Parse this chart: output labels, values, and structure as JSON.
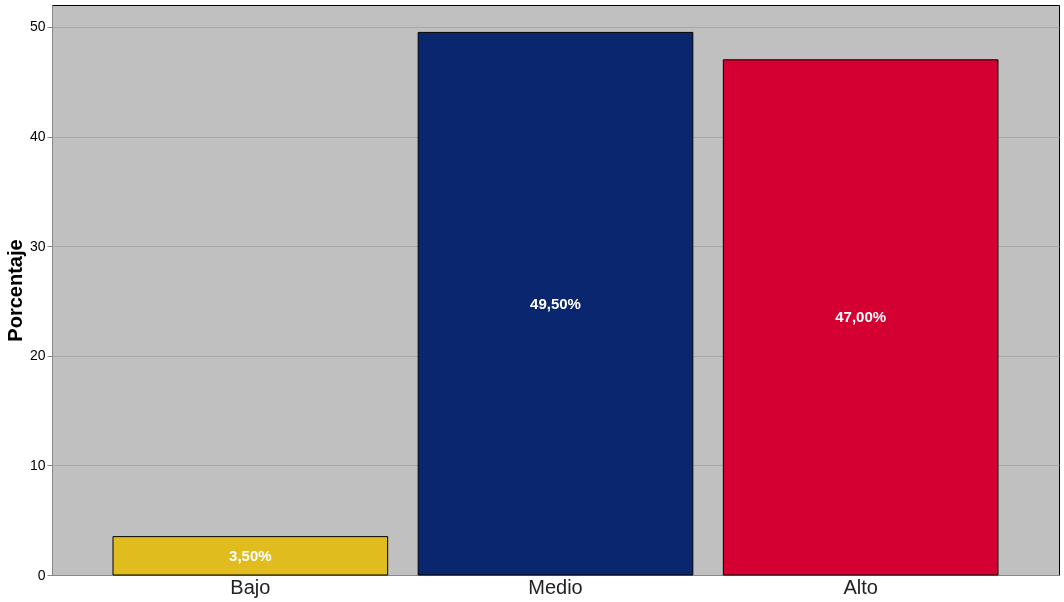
{
  "chart_data": {
    "type": "bar",
    "ylabel": "Porcentaje",
    "categories": [
      "Bajo",
      "Medio",
      "Alto"
    ],
    "values": [
      3.5,
      49.5,
      47.0
    ],
    "colors": [
      "#e0bc1f",
      "#0a266e",
      "#d50032"
    ],
    "value_labels": [
      "3,50%",
      "49,50%",
      "47,00%"
    ],
    "ylim": [
      0,
      52
    ],
    "yticks": [
      0,
      10,
      20,
      30,
      40,
      50
    ],
    "grid": "y"
  }
}
